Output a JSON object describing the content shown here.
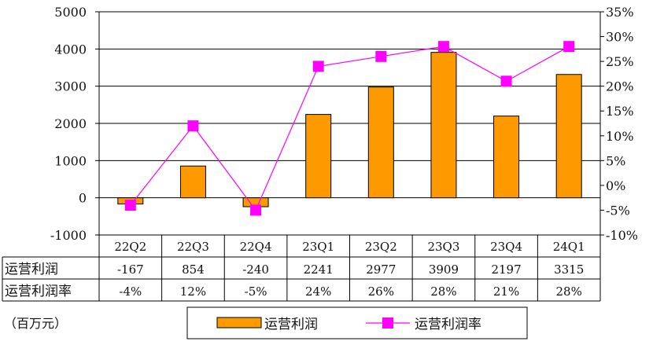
{
  "chart_data": {
    "type": "bar",
    "categories": [
      "22Q2",
      "22Q3",
      "22Q4",
      "23Q1",
      "23Q2",
      "23Q3",
      "23Q4",
      "24Q1"
    ],
    "series": [
      {
        "name": "运营利润",
        "type": "bar",
        "axis": "left",
        "values": [
          -167,
          854,
          -240,
          2241,
          2977,
          3909,
          2197,
          3315
        ],
        "color": "#FF9900"
      },
      {
        "name": "运营利润率",
        "type": "line",
        "axis": "right",
        "values": [
          -4,
          12,
          -5,
          24,
          26,
          28,
          21,
          28
        ],
        "color": "#FF00FF"
      }
    ],
    "left_axis": {
      "min": -1000,
      "max": 5000,
      "step": 1000,
      "ticks": [
        "5000",
        "4000",
        "3000",
        "2000",
        "1000",
        "0",
        "-1000"
      ]
    },
    "right_axis": {
      "min": -10,
      "max": 35,
      "step": 5,
      "ticks": [
        "35%",
        "30%",
        "25%",
        "20%",
        "15%",
        "10%",
        "5%",
        "0%",
        "-5%",
        "-10%"
      ]
    },
    "table": {
      "rows": [
        {
          "label": "运营利润",
          "cells": [
            "-167",
            "854",
            "-240",
            "2241",
            "2977",
            "3909",
            "2197",
            "3315"
          ]
        },
        {
          "label": "运营利润率",
          "cells": [
            "-4%",
            "12%",
            "-5%",
            "24%",
            "26%",
            "28%",
            "21%",
            "28%"
          ]
        }
      ]
    },
    "unit_note": "（百万元）",
    "legend": [
      "运营利润",
      "运营利润率"
    ],
    "grid": true
  }
}
